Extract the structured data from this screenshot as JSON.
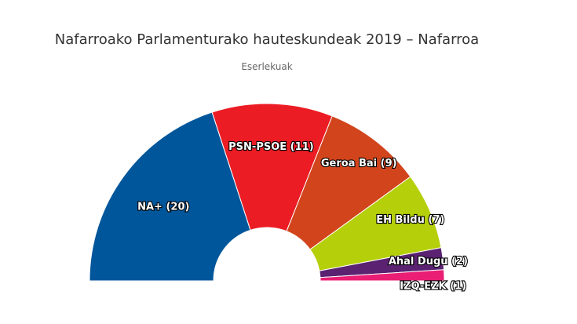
{
  "chart_data": {
    "type": "pie",
    "variant": "semicircle",
    "title": "Nafarroako Parlamenturako hauteskundeak 2019 – Nafarroa",
    "subtitle": "Eserlekuak",
    "slices": [
      {
        "label": "NA+ (20)",
        "value": 20,
        "color": "#00569B"
      },
      {
        "label": "PSN-PSOE (11)",
        "value": 11,
        "color": "#EC1C24"
      },
      {
        "label": "Geroa Bai (9)",
        "value": 9,
        "color": "#D2441C"
      },
      {
        "label": "EH Bildu (7)",
        "value": 7,
        "color": "#B5CF0A"
      },
      {
        "label": "Ahal Dugu (2)",
        "value": 2,
        "color": "#5A2271"
      },
      {
        "label": "IZQ-EZK (1)",
        "value": 1,
        "color": "#E91E74"
      }
    ]
  }
}
